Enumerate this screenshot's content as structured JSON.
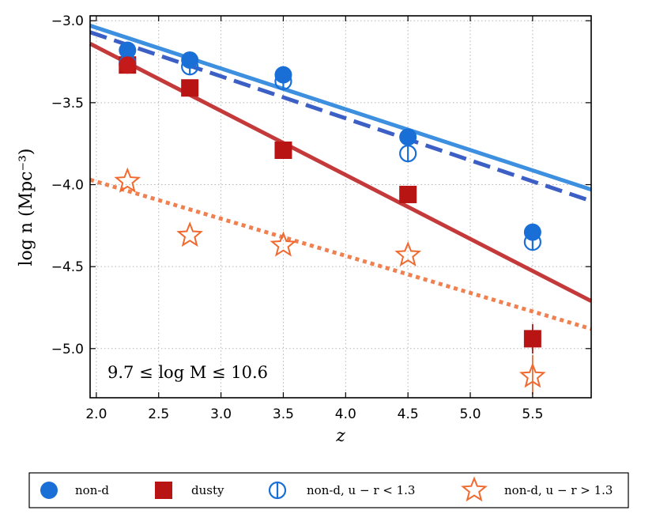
{
  "chart_data": {
    "type": "scatter",
    "xlabel": "z",
    "ylabel": "log n (Mpc⁻³)",
    "xlim": [
      1.95,
      5.97
    ],
    "ylim": [
      -5.3,
      -2.97
    ],
    "xticks": [
      2.0,
      2.5,
      3.0,
      3.5,
      4.0,
      4.5,
      5.0,
      5.5
    ],
    "xtick_labels": [
      "2.0",
      "2.5",
      "3.0",
      "3.5",
      "4.0",
      "4.5",
      "5.0",
      "5.5"
    ],
    "yticks": [
      -3.0,
      -3.5,
      -4.0,
      -4.5,
      -5.0
    ],
    "ytick_labels": [
      "−3.0",
      "−3.5",
      "−4.0",
      "−4.5",
      "−5.0"
    ],
    "grid": true,
    "annotation": "9.7 ≤ log M ≤ 10.6",
    "series": [
      {
        "name": "non-d",
        "marker": "filled-circle",
        "color": "#1a6fd6",
        "x": [
          2.25,
          2.75,
          3.5,
          4.5,
          5.5
        ],
        "y": [
          -3.18,
          -3.24,
          -3.33,
          -3.71,
          -4.29
        ]
      },
      {
        "name": "dusty",
        "marker": "filled-square",
        "color": "#b81414",
        "x": [
          2.25,
          2.75,
          3.5,
          4.5,
          5.5
        ],
        "y": [
          -3.27,
          -3.41,
          -3.79,
          -4.06,
          -4.94
        ]
      },
      {
        "name": "non-d, u − r < 1.3",
        "marker": "open-circle-bar",
        "color": "#1a6fd6",
        "x": [
          2.25,
          2.75,
          3.5,
          4.5,
          5.5
        ],
        "y": [
          -3.26,
          -3.28,
          -3.37,
          -3.81,
          -4.35
        ]
      },
      {
        "name": "non-d, u − r > 1.3",
        "marker": "open-star",
        "color": "#f06a30",
        "x": [
          2.25,
          2.75,
          3.5,
          4.5,
          5.5
        ],
        "y": [
          -3.98,
          -4.31,
          -4.37,
          -4.43,
          -5.17
        ]
      }
    ],
    "special_points": [
      {
        "x": 2.25,
        "y": -3.27,
        "color": "#c41a1a",
        "marker": "filled-circle"
      }
    ],
    "error_bars": [
      {
        "x": 5.5,
        "y_low": -5.03,
        "y_high": -4.85,
        "color": "#b81414"
      },
      {
        "x": 5.5,
        "y_low": -5.28,
        "y_high": -5.04,
        "color": "#f06a30"
      }
    ],
    "fit_lines": [
      {
        "name": "non-d fit",
        "color": "#3d8fe0",
        "style": "solid",
        "x": [
          1.95,
          5.97
        ],
        "y": [
          -3.03,
          -4.03
        ]
      },
      {
        "name": "non-d, u − r < 1.3 fit",
        "color": "#3b5fc4",
        "style": "dashed",
        "x": [
          1.95,
          5.97
        ],
        "y": [
          -3.07,
          -4.1
        ]
      },
      {
        "name": "dusty fit",
        "color": "#c43a3a",
        "style": "solid",
        "x": [
          1.95,
          5.97
        ],
        "y": [
          -3.14,
          -4.71
        ]
      },
      {
        "name": "non-d, u − r > 1.3 fit",
        "color": "#f08050",
        "style": "dotted",
        "x": [
          1.95,
          5.97
        ],
        "y": [
          -3.97,
          -4.88
        ]
      }
    ],
    "legend": {
      "placement": "bottom-outside",
      "entries": [
        {
          "label": "non-d",
          "marker": "filled-circle",
          "color": "#1a6fd6"
        },
        {
          "label": "dusty",
          "marker": "filled-square",
          "color": "#b81414"
        },
        {
          "label": "non-d, u − r < 1.3",
          "marker": "open-circle-bar",
          "color": "#1a6fd6"
        },
        {
          "label": "non-d, u − r > 1.3",
          "marker": "open-star",
          "color": "#f06a30"
        }
      ]
    }
  }
}
